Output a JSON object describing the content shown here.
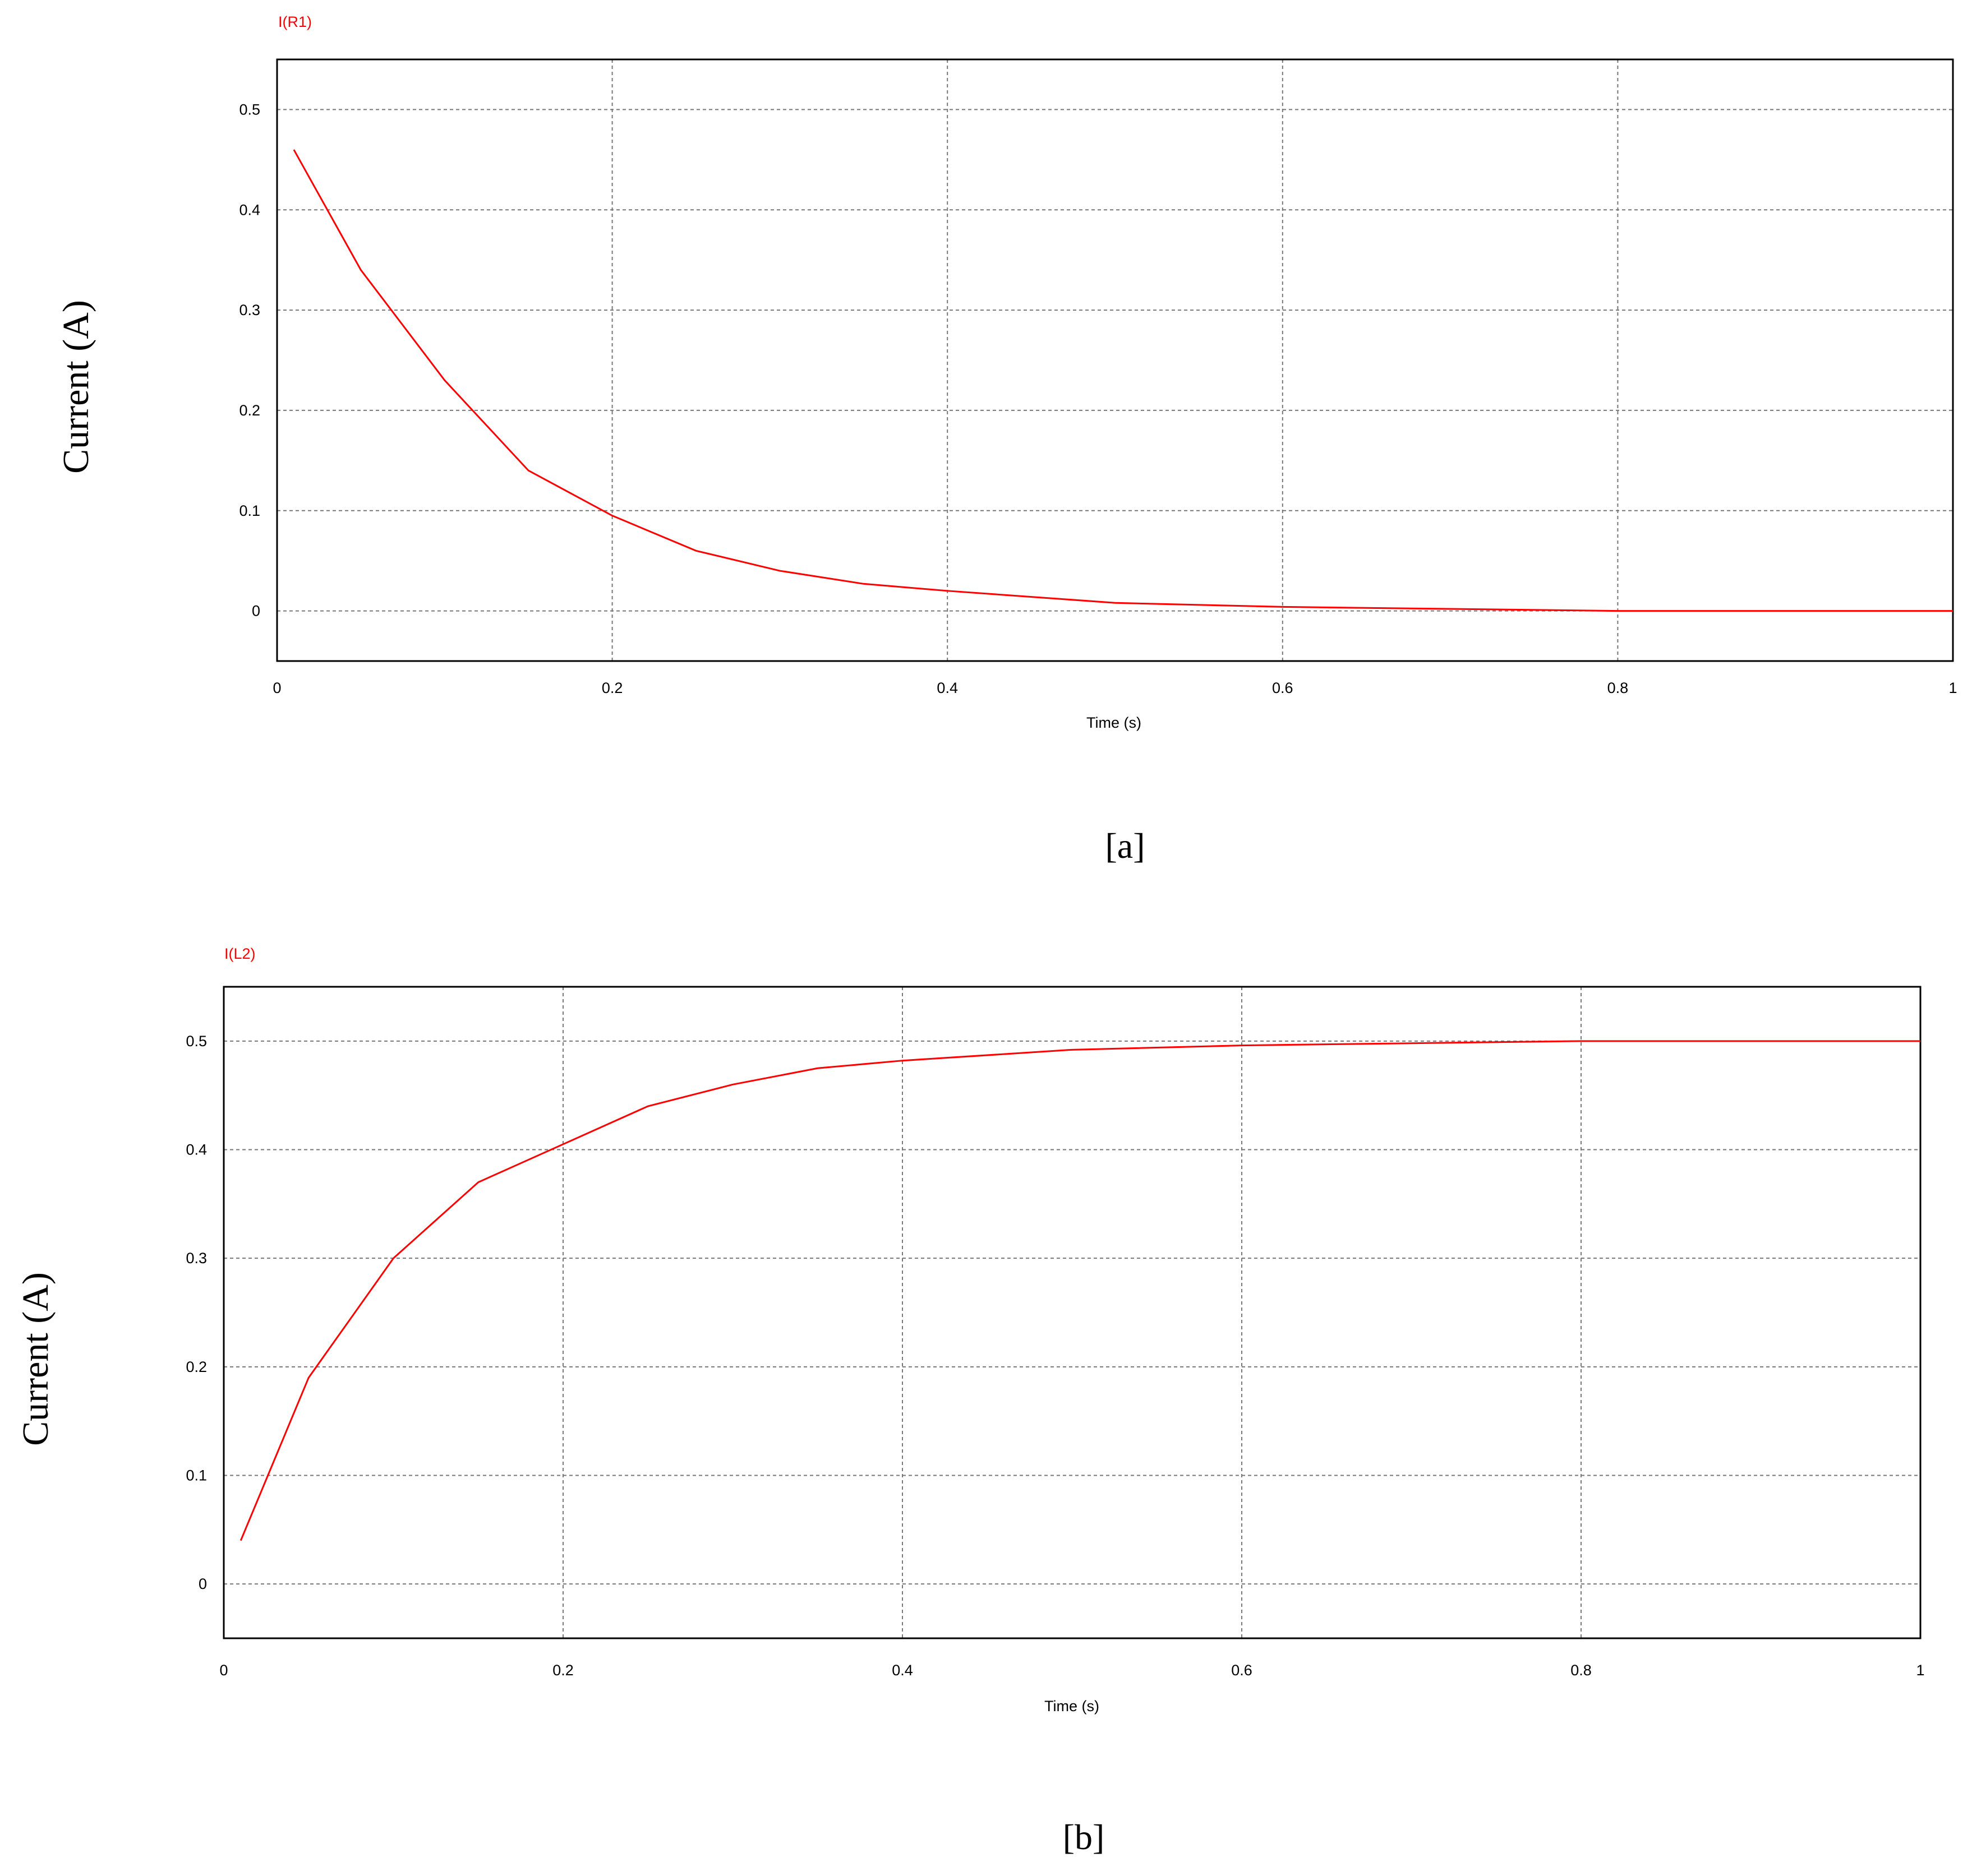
{
  "chart_data": [
    {
      "type": "line",
      "caption": "[a]",
      "xlabel": "Time (s)",
      "ylabel": "Current (A)",
      "x": [
        0.01,
        0.05,
        0.1,
        0.15,
        0.2,
        0.25,
        0.3,
        0.35,
        0.4,
        0.5,
        0.6,
        0.7,
        0.8,
        0.9,
        1.0
      ],
      "series": [
        {
          "name": "I(R1)",
          "color": "#ff0000",
          "values": [
            0.46,
            0.34,
            0.23,
            0.14,
            0.095,
            0.06,
            0.04,
            0.027,
            0.02,
            0.008,
            0.004,
            0.002,
            0,
            0,
            0
          ]
        }
      ],
      "xlim": [
        0,
        1
      ],
      "xticks": [
        0,
        0.2,
        0.4,
        0.6,
        0.8,
        1
      ],
      "ylim": [
        -0.05,
        0.55
      ],
      "yticks": [
        0,
        0.1,
        0.2,
        0.3,
        0.4,
        0.5
      ],
      "grid": true
    },
    {
      "type": "line",
      "caption": "[b]",
      "xlabel": "Time (s)",
      "ylabel": "Current (A)",
      "x": [
        0.01,
        0.05,
        0.1,
        0.15,
        0.2,
        0.25,
        0.3,
        0.35,
        0.4,
        0.5,
        0.6,
        0.7,
        0.8,
        0.9,
        1.0
      ],
      "series": [
        {
          "name": "I(L2)",
          "color": "#ff0000",
          "values": [
            0.04,
            0.19,
            0.3,
            0.37,
            0.405,
            0.44,
            0.46,
            0.475,
            0.482,
            0.492,
            0.496,
            0.498,
            0.5,
            0.5,
            0.5
          ]
        }
      ],
      "xlim": [
        0,
        1
      ],
      "xticks": [
        0,
        0.2,
        0.4,
        0.6,
        0.8,
        1
      ],
      "ylim": [
        -0.05,
        0.55
      ],
      "yticks": [
        0,
        0.1,
        0.2,
        0.3,
        0.4,
        0.5
      ],
      "grid": true
    }
  ]
}
